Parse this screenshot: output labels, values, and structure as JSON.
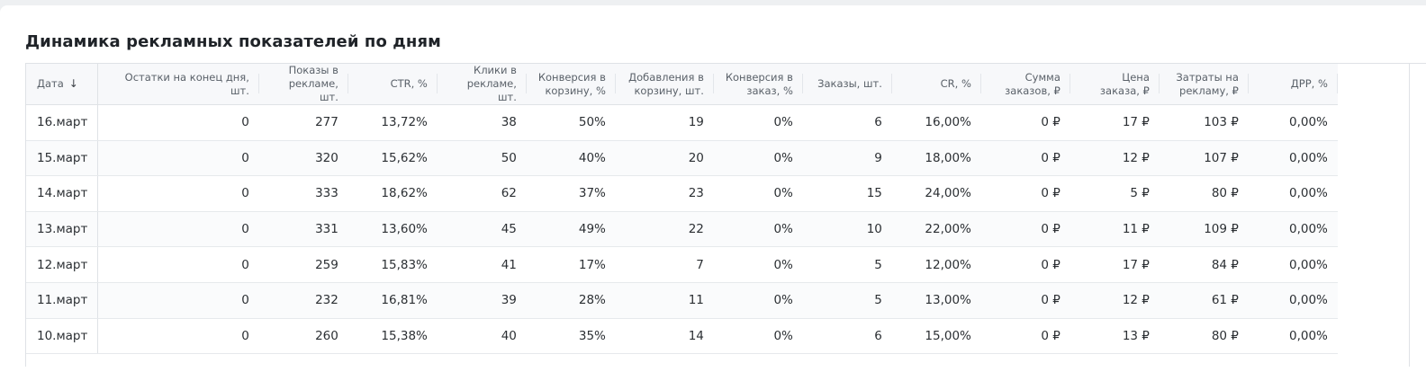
{
  "title": "Динамика рекламных показателей по дням",
  "columns": [
    "Дата",
    "Остатки на конец дня, шт.",
    "Показы в рекламе, шт.",
    "CTR, %",
    "Клики в рекламе, шт.",
    "Конверсия в корзину, %",
    "Добавления в корзину, шт.",
    "Конверсия в заказ, %",
    "Заказы, шт.",
    "CR, %",
    "Сумма заказов, ₽",
    "Цена заказа, ₽",
    "Затраты на рекламу, ₽",
    "ДРР, %"
  ],
  "sort_icon": "arrow-down-icon",
  "rows": [
    [
      "16.март",
      "0",
      "277",
      "13,72%",
      "38",
      "50%",
      "19",
      "0%",
      "6",
      "16,00%",
      "0 ₽",
      "17 ₽",
      "103 ₽",
      "0,00%"
    ],
    [
      "15.март",
      "0",
      "320",
      "15,62%",
      "50",
      "40%",
      "20",
      "0%",
      "9",
      "18,00%",
      "0 ₽",
      "12 ₽",
      "107 ₽",
      "0,00%"
    ],
    [
      "14.март",
      "0",
      "333",
      "18,62%",
      "62",
      "37%",
      "23",
      "0%",
      "15",
      "24,00%",
      "0 ₽",
      "5 ₽",
      "80 ₽",
      "0,00%"
    ],
    [
      "13.март",
      "0",
      "331",
      "13,60%",
      "45",
      "49%",
      "22",
      "0%",
      "10",
      "22,00%",
      "0 ₽",
      "11 ₽",
      "109 ₽",
      "0,00%"
    ],
    [
      "12.март",
      "0",
      "259",
      "15,83%",
      "41",
      "17%",
      "7",
      "0%",
      "5",
      "12,00%",
      "0 ₽",
      "17 ₽",
      "84 ₽",
      "0,00%"
    ],
    [
      "11.март",
      "0",
      "232",
      "16,81%",
      "39",
      "28%",
      "11",
      "0%",
      "5",
      "13,00%",
      "0 ₽",
      "12 ₽",
      "61 ₽",
      "0,00%"
    ],
    [
      "10.март",
      "0",
      "260",
      "15,38%",
      "40",
      "35%",
      "14",
      "0%",
      "6",
      "15,00%",
      "0 ₽",
      "13 ₽",
      "80 ₽",
      "0,00%"
    ]
  ]
}
